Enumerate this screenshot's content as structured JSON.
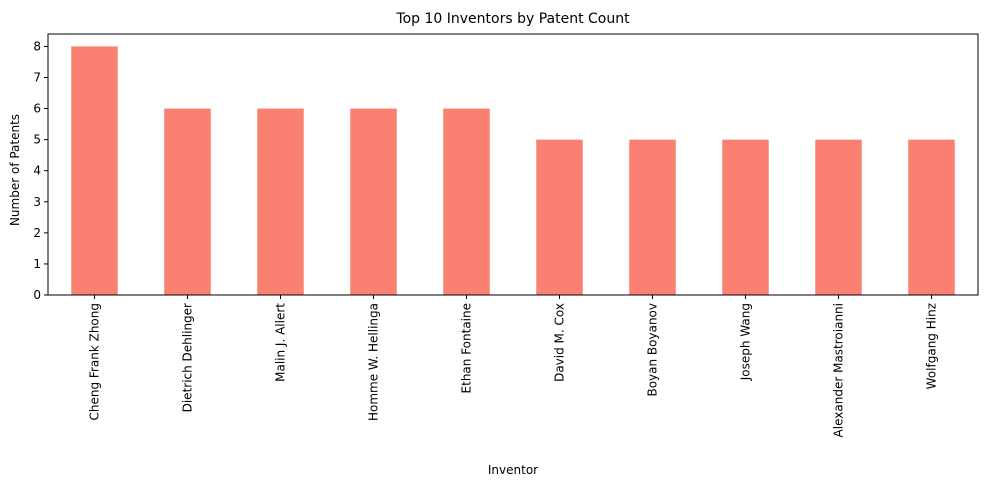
{
  "chart_data": {
    "type": "bar",
    "title": "Top 10 Inventors by Patent Count",
    "xlabel": "Inventor",
    "ylabel": "Number of Patents",
    "categories": [
      "Cheng Frank Zhong",
      "Dietrich Dehlinger",
      "Malin J. Allert",
      "Homme W. Hellinga",
      "Ethan Fontaine",
      "David M. Cox",
      "Boyan Boyanov",
      "Joseph Wang",
      "Alexander Mastroianni",
      "Wolfgang Hinz"
    ],
    "values": [
      8,
      6,
      6,
      6,
      6,
      5,
      5,
      5,
      5,
      5
    ],
    "yticks": [
      "0",
      "1",
      "2",
      "3",
      "4",
      "5",
      "6",
      "7",
      "8"
    ],
    "ylim": [
      0,
      8.4
    ],
    "bar_color": "#fa8072",
    "grid": false,
    "legend": "none"
  }
}
